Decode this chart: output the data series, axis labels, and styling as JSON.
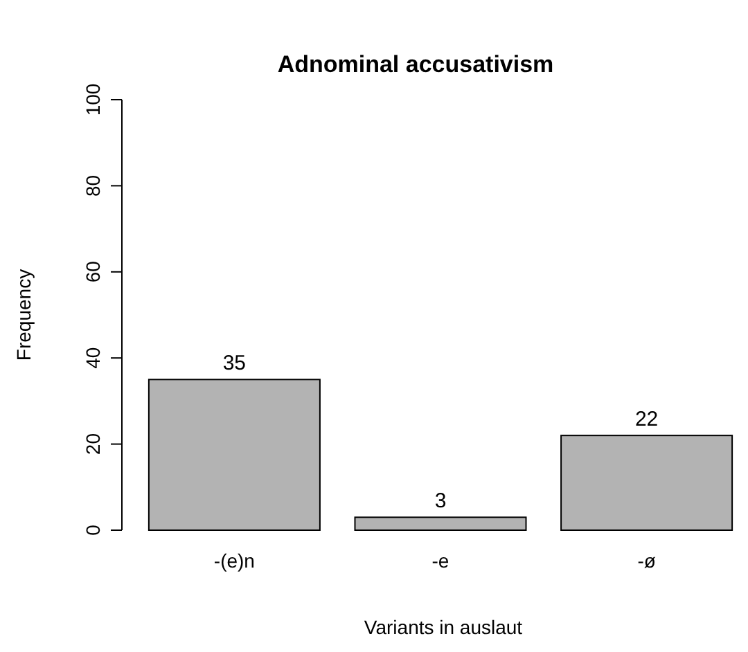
{
  "chart_data": {
    "type": "bar",
    "title": "Adnominal accusativism",
    "xlabel": "Variants in auslaut",
    "ylabel": "Frequency",
    "categories": [
      "-(e)n",
      "-e",
      "-ø"
    ],
    "values": [
      35,
      3,
      22
    ],
    "color": "#b3b3b3",
    "ylim": [
      0,
      100
    ],
    "yticks": [
      0,
      20,
      40,
      60,
      80,
      100
    ],
    "data_labels": true
  }
}
